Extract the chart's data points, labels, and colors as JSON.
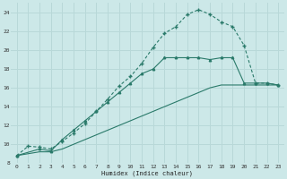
{
  "xlabel": "Humidex (Indice chaleur)",
  "bg_color": "#cce8e8",
  "grid_color": "#b8d8d8",
  "line_color": "#2a7a6a",
  "xlim": [
    -0.5,
    23.5
  ],
  "ylim": [
    8,
    25
  ],
  "xticks": [
    0,
    1,
    2,
    3,
    4,
    5,
    6,
    7,
    8,
    9,
    10,
    11,
    12,
    13,
    14,
    15,
    16,
    17,
    18,
    19,
    20,
    21,
    22,
    23
  ],
  "yticks": [
    8,
    10,
    12,
    14,
    16,
    18,
    20,
    22,
    24
  ],
  "curve1_x": [
    0,
    1,
    2,
    3,
    4,
    5,
    6,
    7,
    8,
    9,
    10,
    11,
    12,
    13,
    14,
    15,
    16,
    17,
    18,
    19,
    20,
    21,
    22,
    23
  ],
  "curve1_y": [
    8.8,
    9.8,
    9.7,
    9.5,
    10.3,
    11.2,
    12.2,
    13.5,
    14.8,
    16.2,
    17.2,
    18.6,
    20.3,
    21.8,
    22.5,
    23.8,
    24.3,
    23.8,
    23.0,
    22.5,
    20.5,
    16.5,
    16.5,
    16.3
  ],
  "curve2_x": [
    0,
    2,
    3,
    4,
    5,
    6,
    7,
    8,
    9,
    10,
    11,
    12,
    13,
    14,
    15,
    16,
    17,
    18,
    19,
    20,
    21,
    22,
    23
  ],
  "curve2_y": [
    8.8,
    9.5,
    9.3,
    10.5,
    11.5,
    12.5,
    13.5,
    14.5,
    15.5,
    16.5,
    17.5,
    18.0,
    19.2,
    19.2,
    19.2,
    19.2,
    19.0,
    19.2,
    19.2,
    16.5,
    16.5,
    16.5,
    16.3
  ],
  "curve3_x": [
    0,
    1,
    2,
    3,
    4,
    5,
    6,
    7,
    8,
    9,
    10,
    11,
    12,
    13,
    14,
    15,
    16,
    17,
    18,
    19,
    20,
    21,
    22,
    23
  ],
  "curve3_y": [
    8.8,
    9.0,
    9.2,
    9.2,
    9.5,
    10.0,
    10.5,
    11.0,
    11.5,
    12.0,
    12.5,
    13.0,
    13.5,
    14.0,
    14.5,
    15.0,
    15.5,
    16.0,
    16.3,
    16.3,
    16.3,
    16.3,
    16.3,
    16.3
  ]
}
